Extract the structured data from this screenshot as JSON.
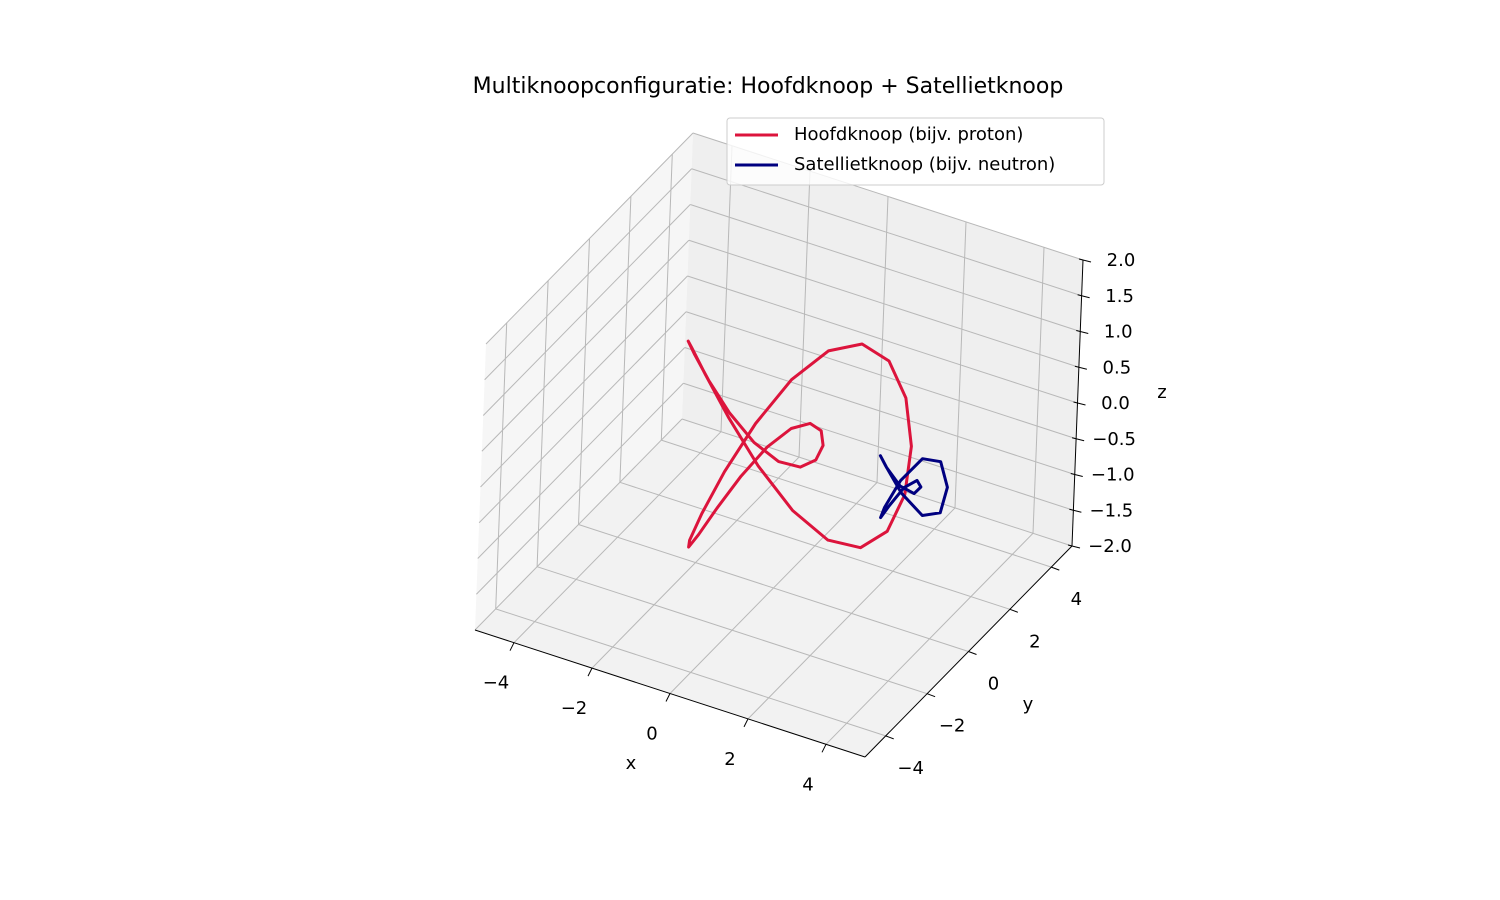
{
  "chart_data": {
    "type": "line3d",
    "title": "Multiknoopconfiguratie: Hoofdknoop + Satellietknoop",
    "xlabel": "x",
    "ylabel": "y",
    "zlabel": "z",
    "xlim": [
      -5,
      5
    ],
    "ylim": [
      -5,
      5
    ],
    "zlim": [
      -2,
      2
    ],
    "xticks": [
      {
        "value": -4,
        "label": "−4"
      },
      {
        "value": -2,
        "label": "−2"
      },
      0,
      2,
      4
    ],
    "yticks": [
      {
        "value": -4,
        "label": "−4"
      },
      {
        "value": -2,
        "label": "−2"
      },
      0,
      2,
      4
    ],
    "zticks": [
      {
        "value": -2,
        "label": "−2.0"
      },
      {
        "value": -1.5,
        "label": "−1.5"
      },
      {
        "value": -1,
        "label": "−1.0"
      },
      {
        "value": -0.5,
        "label": "−0.5"
      },
      {
        "value": 0,
        "label": "0.0"
      },
      {
        "value": 0.5,
        "label": "0.5"
      },
      {
        "value": 1,
        "label": "1.0"
      },
      {
        "value": 1.5,
        "label": "1.5"
      },
      {
        "value": 2,
        "label": "2.0"
      }
    ],
    "grid": true,
    "legend": "upper right",
    "series": [
      {
        "name": "Hoofdknoop (bijv. proton)",
        "color": "#dc143c",
        "x": [
          0,
          0.858,
          1.628,
          2.232,
          2.612,
          2.736,
          2.598,
          2.225,
          1.669,
          1,
          0.301,
          -0.346,
          -0.866,
          -1.204,
          -1.327,
          -1.232,
          -0.944,
          -0.51,
          0,
          0.51,
          0.944,
          1.232,
          1.327,
          1.204,
          0.866,
          0.346,
          -0.301,
          -1,
          -1.669,
          -2.225,
          -2.598,
          -2.736,
          -2.612,
          -2.232,
          -1.628,
          -0.858,
          0
        ],
        "y": [
          -1,
          -0.895,
          -0.592,
          -0.134,
          0.419,
          0.99,
          1.5,
          1.874,
          2.053,
          2,
          1.706,
          1.19,
          0.5,
          -0.296,
          -1.113,
          -1.866,
          -2.472,
          -2.864,
          -3,
          -2.864,
          -2.472,
          -1.866,
          -1.113,
          -0.296,
          0.5,
          1.19,
          1.706,
          2,
          2.053,
          1.874,
          1.5,
          0.99,
          0.419,
          -0.134,
          -0.592,
          -0.895,
          -1
        ],
        "z": [
          0,
          -0.5,
          -0.866,
          -1,
          -0.866,
          -0.5,
          0,
          0.5,
          0.866,
          1,
          0.866,
          0.5,
          0,
          -0.5,
          -0.866,
          -1,
          -0.866,
          -0.5,
          0,
          0.5,
          0.866,
          1,
          0.866,
          0.5,
          0,
          -0.5,
          -0.866,
          -1,
          -0.866,
          -0.5,
          0,
          0.5,
          0.866,
          1,
          0.866,
          0.5,
          0
        ]
      },
      {
        "name": "Satellietknoop (bijv. neutron)",
        "color": "#000080",
        "x": [
          3.3,
          3.788,
          4.084,
          4.079,
          3.801,
          3.39,
          3.04,
          2.902,
          3.017,
          3.3,
          3.583,
          3.698,
          3.56,
          3.21,
          2.799,
          2.521,
          2.516,
          2.812,
          3.3
        ],
        "y": [
          -0.3,
          -0.178,
          0.126,
          0.45,
          0.616,
          0.512,
          0.15,
          -0.334,
          -0.742,
          -0.9,
          -0.742,
          -0.334,
          0.15,
          0.512,
          0.616,
          0.45,
          0.126,
          -0.178,
          -0.3
        ],
        "z": [
          0,
          -0.26,
          -0.26,
          0,
          0.26,
          0.26,
          0,
          -0.26,
          -0.26,
          0,
          0.26,
          0.26,
          0,
          -0.26,
          -0.26,
          0,
          0.26,
          0.26,
          0
        ]
      }
    ]
  }
}
